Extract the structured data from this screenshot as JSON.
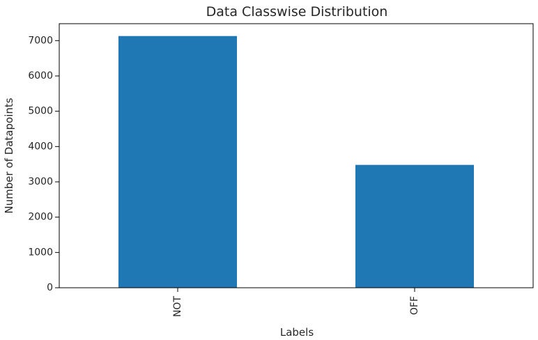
{
  "chart_data": {
    "type": "bar",
    "title": "Data Classwise Distribution",
    "xlabel": "Labels",
    "ylabel": "Number of Datapoints",
    "categories": [
      "NOT",
      "OFF"
    ],
    "values": [
      7130,
      3480
    ],
    "ylim": [
      0,
      7480
    ],
    "yticks": [
      0,
      1000,
      2000,
      3000,
      4000,
      5000,
      6000,
      7000
    ],
    "color": "#1f77b4",
    "grid": false,
    "x_tick_rotation": "vertical"
  }
}
